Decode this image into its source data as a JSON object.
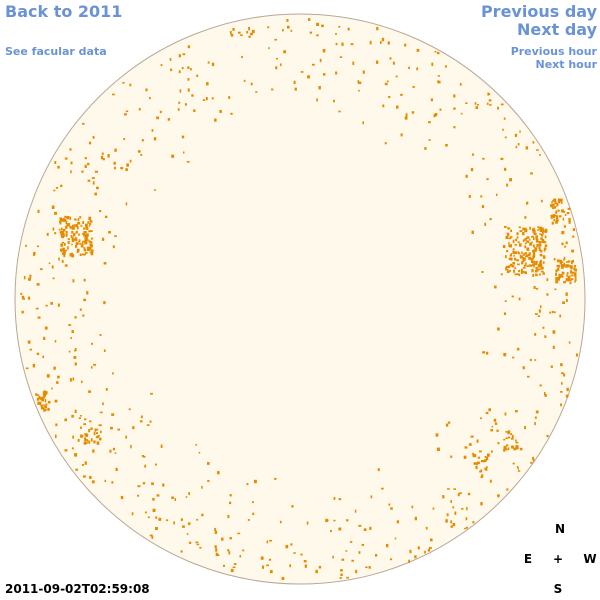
{
  "nav": {
    "back": "Back to 2011",
    "facular": "See facular data",
    "prev_day": "Previous day",
    "next_day": "Next day",
    "prev_hour": "Previous hour",
    "next_hour": "Next hour"
  },
  "timestamp": "2011-09-02T02:59:08",
  "compass": {
    "n": "N",
    "e": "E",
    "center": "+",
    "w": "W",
    "s": "S"
  },
  "colors": {
    "disk_fill": "#fff9ec",
    "disk_outline": "#b8a896",
    "facula": "#e68a00",
    "link": "#6a93d6"
  }
}
